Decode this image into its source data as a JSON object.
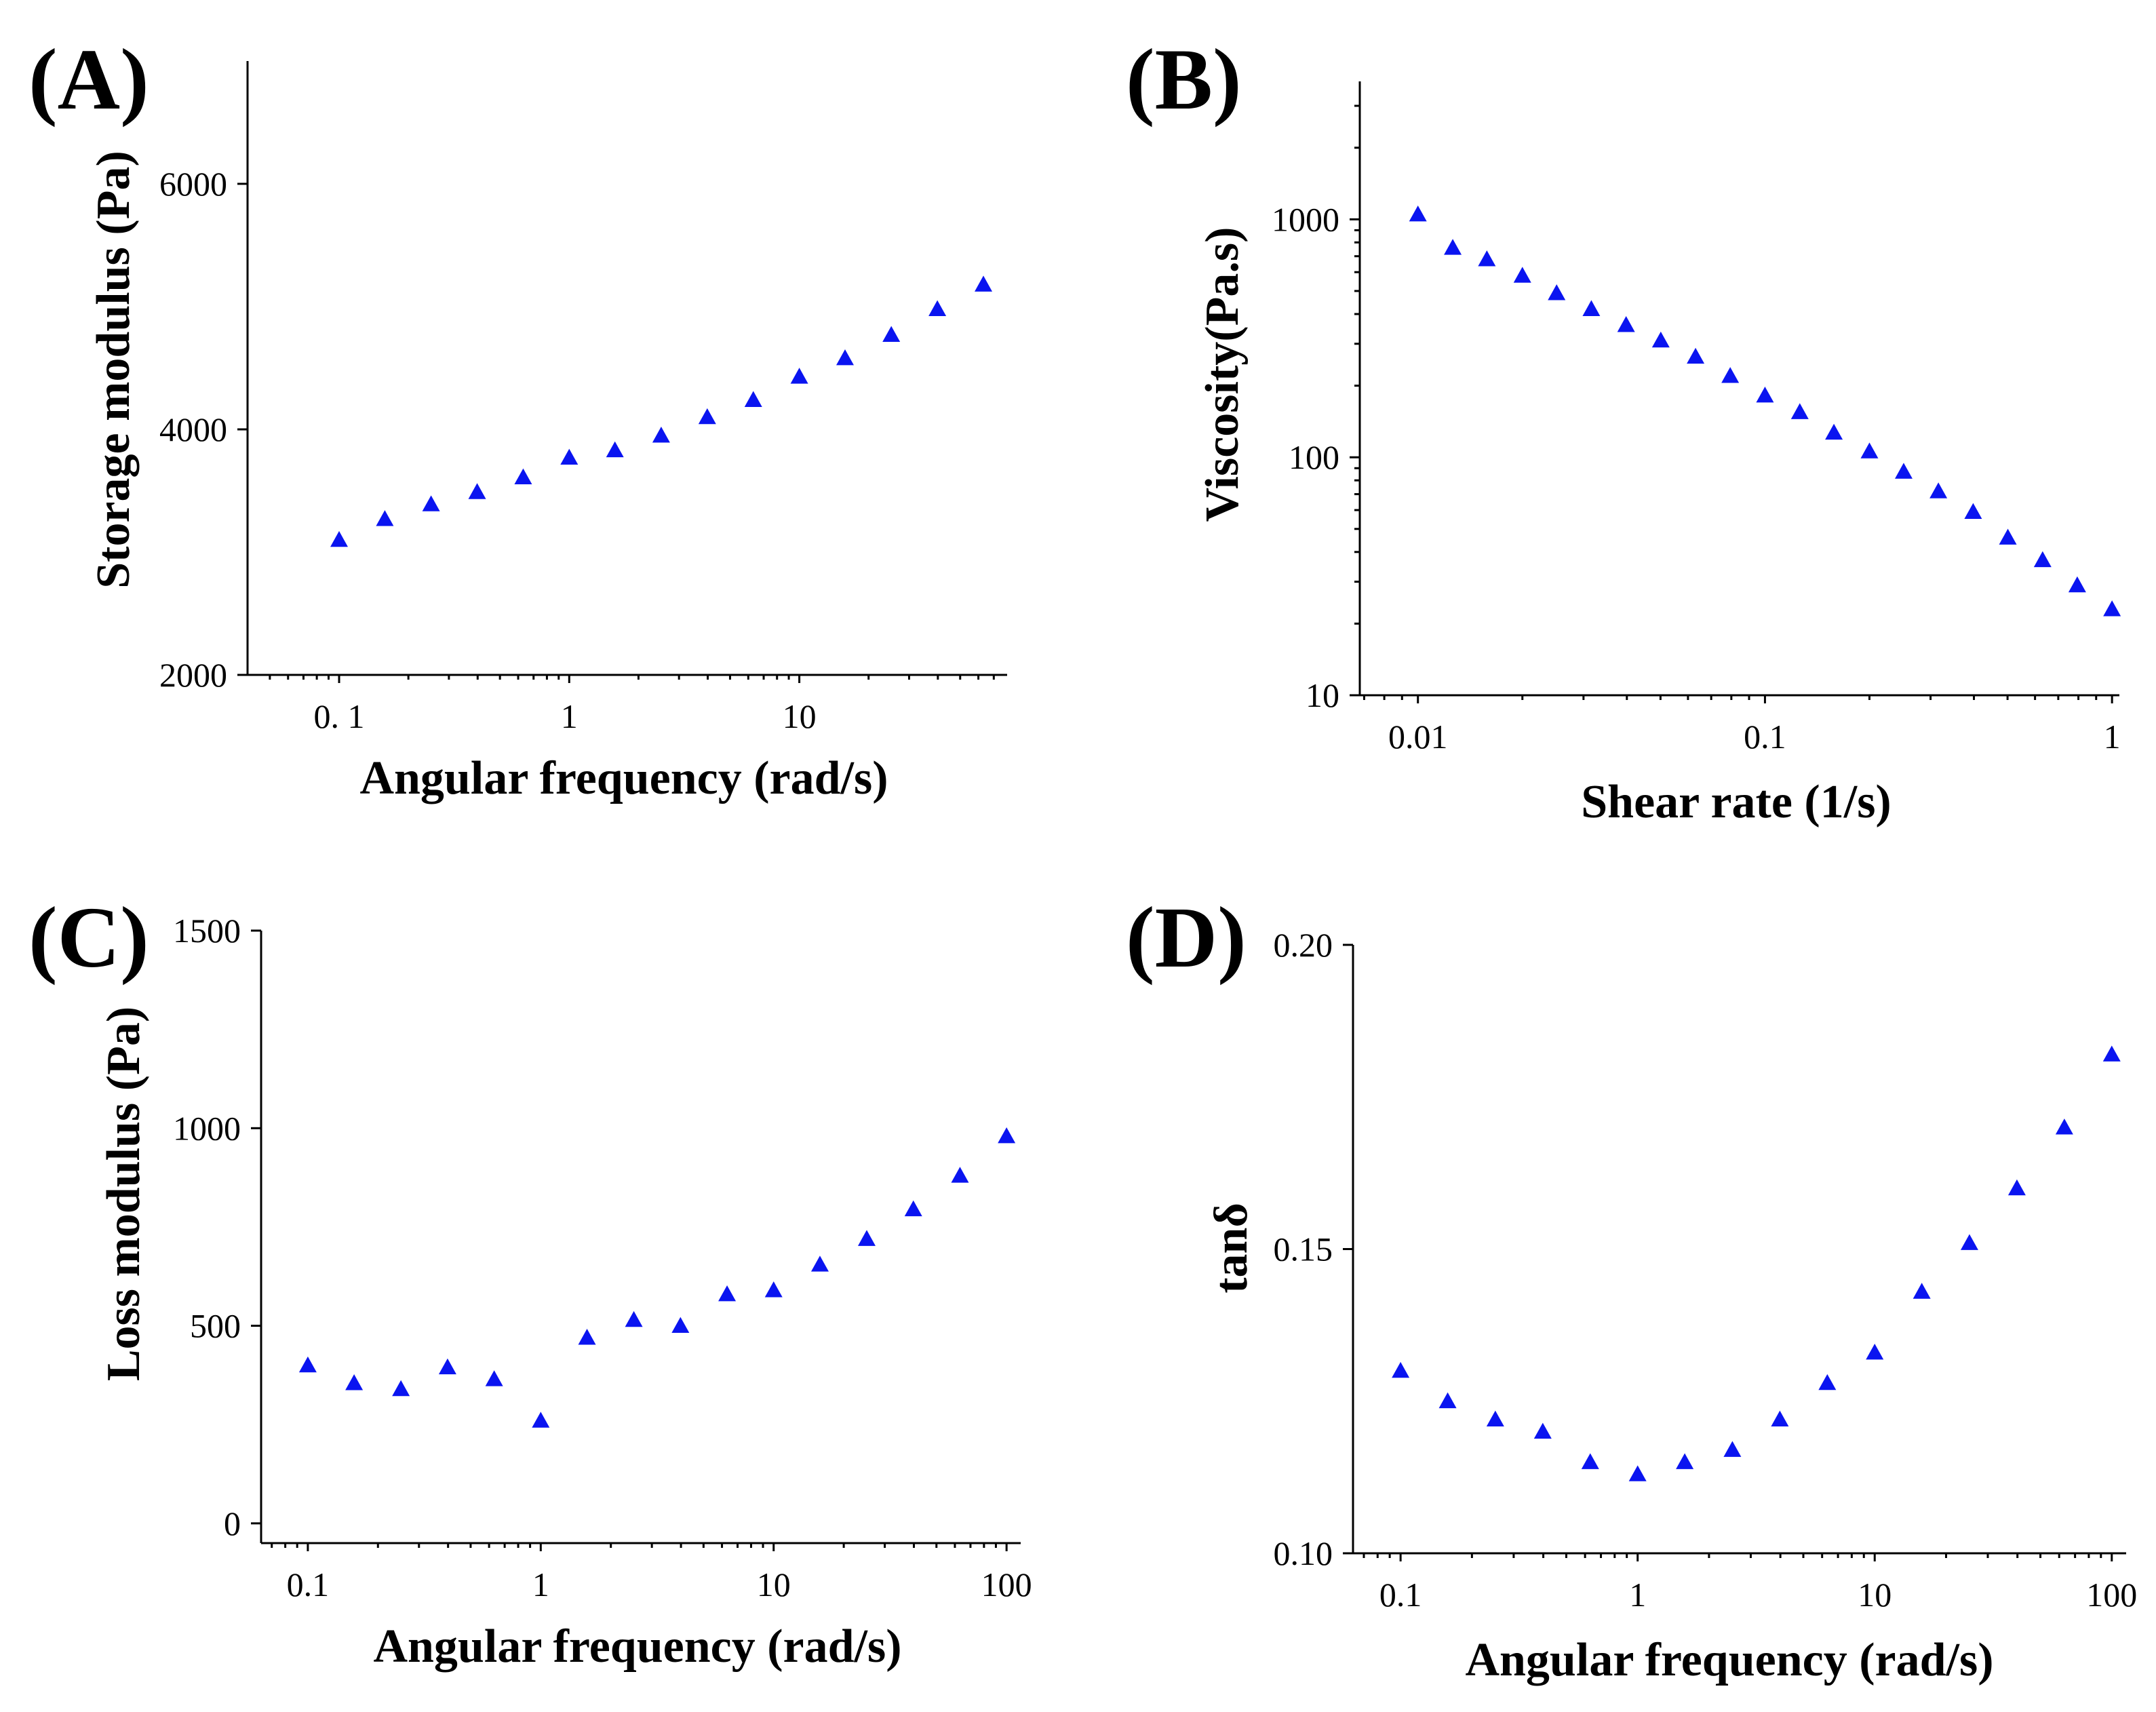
{
  "figure": {
    "colors": {
      "marker": "#0a14f0",
      "axis": "#000000",
      "background": "#ffffff"
    }
  },
  "chart_data": [
    {
      "id": "A",
      "type": "scatter",
      "panel_label": "(A)",
      "xlabel": "Angular frequency (rad/s)",
      "ylabel": "Storage modulus (Pa)",
      "xscale": "log",
      "yscale": "linear",
      "xlim": [
        0.04,
        80
      ],
      "ylim": [
        2000,
        7000
      ],
      "xticks": [
        0.1,
        1,
        10
      ],
      "xtick_labels": [
        "0. 1",
        "1",
        "10"
      ],
      "yticks": [
        2000,
        4000,
        6000
      ],
      "ytick_labels": [
        "2000",
        "4000",
        "6000"
      ],
      "marker": "triangle",
      "x": [
        0.1,
        0.158,
        0.251,
        0.398,
        0.631,
        1,
        1.58,
        2.51,
        3.98,
        6.31,
        10,
        15.8,
        25.1,
        39.8,
        63.1
      ],
      "y": [
        3100,
        3270,
        3390,
        3490,
        3610,
        3770,
        3830,
        3950,
        4100,
        4240,
        4430,
        4580,
        4770,
        4980,
        5180
      ]
    },
    {
      "id": "B",
      "type": "scatter",
      "panel_label": "(B)",
      "xlabel": "Shear rate (1/s)",
      "ylabel": "Viscosity(Pa.s)",
      "xscale": "log",
      "yscale": "log",
      "xlim": [
        0.0068,
        1.05
      ],
      "ylim": [
        10,
        3800
      ],
      "xticks": [
        0.01,
        0.1,
        1
      ],
      "xtick_labels": [
        "0.01",
        "0.1",
        "1"
      ],
      "yticks": [
        10,
        100,
        1000
      ],
      "ytick_labels": [
        "10",
        "100",
        "1000"
      ],
      "marker": "triangle",
      "x": [
        0.01,
        0.0126,
        0.0158,
        0.02,
        0.0251,
        0.0316,
        0.0398,
        0.0501,
        0.0631,
        0.0794,
        0.1,
        0.126,
        0.158,
        0.2,
        0.251,
        0.316,
        0.398,
        0.501,
        0.631,
        0.794,
        1
      ],
      "y": [
        1050,
        760,
        680,
        580,
        490,
        420,
        360,
        310,
        265,
        220,
        182,
        155,
        127,
        106,
        87,
        72,
        59,
        46,
        37,
        29,
        23
      ]
    },
    {
      "id": "C",
      "type": "scatter",
      "panel_label": "(C)",
      "xlabel": "Angular frequency (rad/s)",
      "ylabel": "Loss modulus (Pa)",
      "xscale": "log",
      "yscale": "linear",
      "xlim": [
        0.063,
        115
      ],
      "ylim": [
        -50,
        1500
      ],
      "xticks": [
        0.1,
        1,
        10,
        100
      ],
      "xtick_labels": [
        "0.1",
        "1",
        "10",
        "100"
      ],
      "yticks": [
        0,
        500,
        1000,
        1500
      ],
      "ytick_labels": [
        "0",
        "500",
        "1000",
        "1500"
      ],
      "marker": "triangle",
      "x": [
        0.1,
        0.158,
        0.251,
        0.398,
        0.631,
        1,
        1.58,
        2.51,
        3.98,
        6.31,
        10,
        15.8,
        25.1,
        39.8,
        63.1,
        100
      ],
      "y": [
        400,
        355,
        340,
        395,
        365,
        260,
        470,
        515,
        500,
        580,
        590,
        655,
        720,
        795,
        880,
        980
      ]
    },
    {
      "id": "D",
      "type": "scatter",
      "panel_label": "(D)",
      "xlabel": "Angular frequency (rad/s)",
      "ylabel": "tanδ",
      "xscale": "log",
      "yscale": "linear",
      "xlim": [
        0.063,
        115
      ],
      "ylim": [
        0.1,
        0.2
      ],
      "xticks": [
        0.1,
        1,
        10,
        100
      ],
      "xtick_labels": [
        "0.1",
        "1",
        "10",
        "100"
      ],
      "yticks": [
        0.1,
        0.15,
        0.2
      ],
      "ytick_labels": [
        "0.10",
        "0.15",
        "0.20"
      ],
      "marker": "triangle",
      "x": [
        0.1,
        0.158,
        0.251,
        0.398,
        0.631,
        1,
        1.58,
        2.51,
        3.98,
        6.31,
        10,
        15.8,
        25.1,
        39.8,
        63.1,
        100
      ],
      "y": [
        0.13,
        0.125,
        0.122,
        0.12,
        0.115,
        0.113,
        0.115,
        0.117,
        0.122,
        0.128,
        0.133,
        0.143,
        0.151,
        0.16,
        0.17,
        0.182
      ]
    }
  ]
}
